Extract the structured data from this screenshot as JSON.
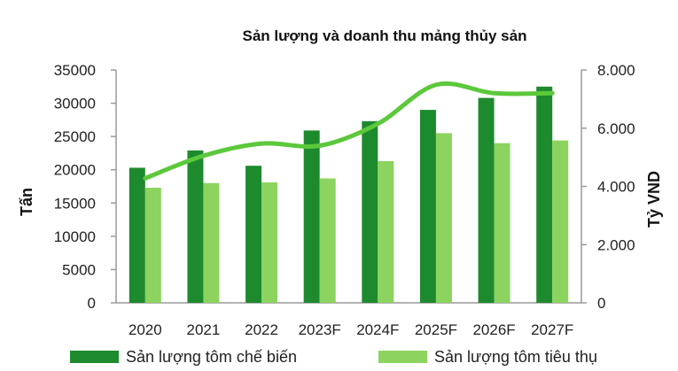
{
  "chart_data": {
    "type": "bar",
    "title": "Sản lượng và doanh thu mảng thủy sản",
    "categories": [
      "2020",
      "2021",
      "2022",
      "2023F",
      "2024F",
      "2025F",
      "2026F",
      "2027F"
    ],
    "ylabel": "Tấn",
    "y2label": "Tỷ VND",
    "ylim": [
      0,
      35000
    ],
    "y2lim": [
      0,
      8000
    ],
    "yticks": [
      "0",
      "5000",
      "10000",
      "15000",
      "20000",
      "25000",
      "30000",
      "35000"
    ],
    "y2ticks": [
      "0",
      "2.000",
      "4.000",
      "6.000",
      "8.000"
    ],
    "grid": false,
    "legend_position": "bottom",
    "series": [
      {
        "name": "Sản lượng tôm chế biến",
        "type": "bar",
        "axis": "left",
        "color": "#1e8a2e",
        "values": [
          20300,
          22900,
          20600,
          25900,
          27300,
          29000,
          30800,
          32500
        ]
      },
      {
        "name": "Sản lượng tôm tiêu thụ",
        "type": "bar",
        "axis": "left",
        "color": "#8cd35f",
        "values": [
          17300,
          18000,
          18100,
          18700,
          21300,
          25500,
          24000,
          24400
        ]
      },
      {
        "type": "line",
        "axis": "right",
        "color": "#5cc83b",
        "values": [
          4280,
          5050,
          5470,
          5400,
          6150,
          7490,
          7200,
          7200
        ]
      }
    ]
  }
}
